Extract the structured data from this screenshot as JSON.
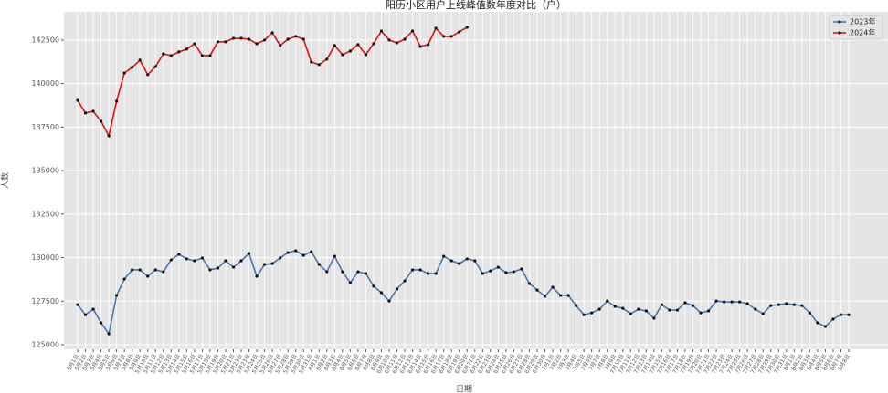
{
  "chart_data": {
    "type": "line",
    "title": "阳历小区用户上线峰值数年度对比（户）",
    "xlabel": "日期",
    "ylabel": "人数",
    "categories": [
      "5月1日",
      "5月2日",
      "5月3日",
      "5月4日",
      "5月5日",
      "5月6日",
      "5月7日",
      "5月8日",
      "5月9日",
      "5月10日",
      "5月11日",
      "5月12日",
      "5月13日",
      "5月14日",
      "5月15日",
      "5月16日",
      "5月17日",
      "5月18日",
      "5月19日",
      "5月20日",
      "5月21日",
      "5月22日",
      "5月23日",
      "5月24日",
      "5月25日",
      "5月26日",
      "5月27日",
      "5月28日",
      "5月29日",
      "5月30日",
      "5月31日",
      "6月1日",
      "6月2日",
      "6月3日",
      "6月4日",
      "6月5日",
      "6月6日",
      "6月7日",
      "6月8日",
      "6月9日",
      "6月10日",
      "6月11日",
      "6月12日",
      "6月13日",
      "6月14日",
      "6月15日",
      "6月16日",
      "6月17日",
      "6月18日",
      "6月19日",
      "6月20日",
      "6月21日",
      "6月22日",
      "6月23日",
      "6月24日",
      "6月25日",
      "6月26日",
      "6月27日",
      "6月28日",
      "6月29日",
      "6月30日",
      "7月1日",
      "7月2日",
      "7月3日",
      "7月4日",
      "7月5日",
      "7月6日",
      "7月7日",
      "7月8日",
      "7月9日",
      "7月10日",
      "7月11日",
      "7月12日",
      "7月13日",
      "7月14日",
      "7月15日",
      "7月16日",
      "7月17日",
      "7月18日",
      "7月19日",
      "7月20日",
      "7月21日",
      "7月22日",
      "7月23日",
      "7月24日",
      "7月25日",
      "7月26日",
      "7月27日",
      "7月28日",
      "7月29日",
      "7月30日",
      "7月31日",
      "8月1日",
      "8月2日",
      "8月3日",
      "8月4日",
      "8月5日",
      "8月6日",
      "8月7日",
      "8月8日"
    ],
    "series": [
      {
        "name": "2023年",
        "color": "#4878b0",
        "values": [
          127300,
          126720,
          127040,
          126260,
          125630,
          127830,
          128770,
          129300,
          129300,
          128930,
          129300,
          129190,
          129870,
          130190,
          129930,
          129820,
          129980,
          129300,
          129400,
          129820,
          129450,
          129820,
          130240,
          128930,
          129610,
          129660,
          129980,
          130290,
          130400,
          130130,
          130340,
          129610,
          129190,
          130080,
          129190,
          128560,
          129190,
          129090,
          128360,
          127990,
          127510,
          128200,
          128670,
          129300,
          129300,
          129090,
          129090,
          130080,
          129820,
          129660,
          129930,
          129820,
          129090,
          129240,
          129450,
          129140,
          129190,
          129350,
          128510,
          128140,
          127780,
          128300,
          127830,
          127830,
          127250,
          126720,
          126830,
          127040,
          127510,
          127200,
          127090,
          126780,
          127040,
          126940,
          126520,
          127300,
          126990,
          126990,
          127410,
          127250,
          126830,
          126940,
          127510,
          127460,
          127460,
          127460,
          127360,
          127040,
          126780,
          127250,
          127300,
          127360,
          127300,
          127250,
          126830,
          126260,
          126050,
          126470,
          126720,
          126720
        ]
      },
      {
        "name": "2024年",
        "color": "#dd1111",
        "values": [
          139040,
          138310,
          138410,
          137840,
          137000,
          138990,
          140610,
          140930,
          141350,
          140510,
          140980,
          141710,
          141610,
          141820,
          141980,
          142290,
          141610,
          141610,
          142400,
          142400,
          142600,
          142600,
          142550,
          142290,
          142500,
          142920,
          142190,
          142550,
          142710,
          142550,
          141240,
          141090,
          141400,
          142190,
          141660,
          141870,
          142240,
          141660,
          142290,
          143020,
          142500,
          142340,
          142550,
          143020,
          142130,
          142240,
          143180,
          142710,
          142710,
          142970,
          143230,
          null,
          null,
          null,
          null,
          null,
          null,
          null,
          null,
          null,
          null,
          null,
          null,
          null,
          null,
          null,
          null,
          null,
          null,
          null,
          null,
          null,
          null,
          null,
          null,
          null,
          null,
          null,
          null,
          null,
          null,
          null,
          null,
          null,
          null,
          null,
          null,
          null,
          null,
          null,
          null,
          null,
          null,
          null,
          null,
          null,
          null,
          null,
          null,
          null
        ]
      }
    ],
    "ylim": [
      124740,
      144120
    ],
    "yticks": [
      125000,
      127500,
      130000,
      132500,
      135000,
      137500,
      140000,
      142500
    ],
    "grid": true,
    "legend": "upper right"
  }
}
